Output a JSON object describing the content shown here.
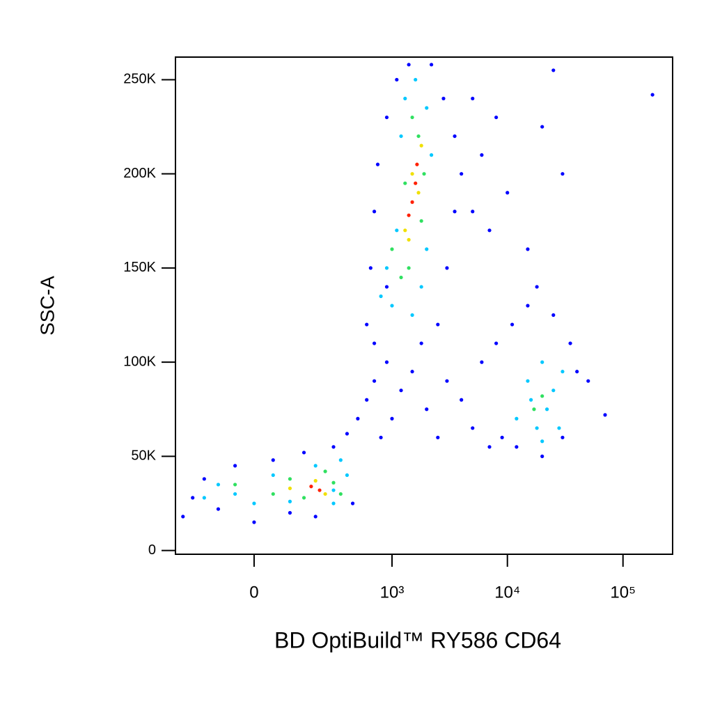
{
  "chart_data": {
    "type": "scatter",
    "xlabel": "BD OptiBuild™ RY586 CD64",
    "ylabel": "SSC-A",
    "xscale": "biexponential",
    "xlim": [
      -295,
      268700
    ],
    "ylim": [
      -2000,
      262000
    ],
    "xticks": [
      0,
      {
        "value": 1000,
        "label": "10³"
      },
      {
        "value": 10000,
        "label": "10⁴"
      },
      {
        "value": 100000,
        "label": "10⁵"
      }
    ],
    "yticks": [
      0,
      {
        "value": 50000,
        "label": "50K"
      },
      {
        "value": 100000,
        "label": "100K"
      },
      {
        "value": 150000,
        "label": "150K"
      },
      {
        "value": 200000,
        "label": "200K"
      },
      {
        "value": 250000,
        "label": "250K"
      }
    ],
    "series": [
      {
        "color": "#0000ff",
        "x": [
          -250,
          -200,
          -150,
          -100,
          -50,
          0,
          50,
          100,
          150,
          200,
          300,
          400,
          500,
          450,
          600,
          700,
          800,
          900,
          1000,
          1200,
          1500,
          2000,
          2500,
          3000,
          4000,
          5000,
          6000,
          7000,
          8000,
          9000,
          11000,
          12000,
          15000,
          18000,
          20000,
          25000,
          30000,
          35000,
          40000,
          50000,
          70000,
          600,
          650,
          700,
          750,
          900,
          1100,
          1400,
          2200,
          2800,
          3500,
          4000,
          5000,
          6000,
          7000,
          8000,
          10000,
          15000,
          20000,
          30000,
          3000,
          2500,
          700,
          900,
          1800,
          3500,
          5000,
          25000,
          180000
        ],
        "y": [
          18000,
          28000,
          38000,
          22000,
          45000,
          15000,
          48000,
          20000,
          52000,
          18000,
          55000,
          62000,
          70000,
          25000,
          80000,
          90000,
          60000,
          100000,
          70000,
          85000,
          95000,
          75000,
          60000,
          90000,
          80000,
          65000,
          100000,
          55000,
          110000,
          60000,
          120000,
          55000,
          130000,
          140000,
          50000,
          125000,
          60000,
          110000,
          95000,
          90000,
          72000,
          120000,
          150000,
          180000,
          205000,
          230000,
          250000,
          258000,
          258000,
          240000,
          220000,
          200000,
          180000,
          210000,
          170000,
          230000,
          190000,
          160000,
          225000,
          200000,
          150000,
          120000,
          110000,
          140000,
          110000,
          180000,
          240000,
          255000,
          242000
        ]
      },
      {
        "color": "#00c8ff",
        "x": [
          -150,
          -100,
          0,
          50,
          100,
          200,
          300,
          350,
          400,
          -50,
          300,
          900,
          1000,
          1100,
          1200,
          1300,
          1500,
          1600,
          2000,
          2200,
          2000,
          1800,
          800,
          12000,
          15000,
          18000,
          20000,
          22000,
          25000,
          28000,
          16000,
          30000,
          20000
        ],
        "y": [
          28000,
          35000,
          25000,
          40000,
          26000,
          45000,
          25000,
          48000,
          40000,
          30000,
          32000,
          150000,
          130000,
          170000,
          220000,
          240000,
          125000,
          250000,
          160000,
          210000,
          235000,
          140000,
          135000,
          70000,
          90000,
          65000,
          100000,
          75000,
          85000,
          65000,
          80000,
          95000,
          58000
        ]
      },
      {
        "color": "#30e060",
        "x": [
          -50,
          50,
          100,
          150,
          250,
          300,
          350,
          1000,
          1200,
          1300,
          1500,
          1700,
          1800,
          1400,
          1900,
          20000,
          17000
        ],
        "y": [
          35000,
          30000,
          38000,
          28000,
          42000,
          36000,
          30000,
          160000,
          145000,
          195000,
          230000,
          220000,
          175000,
          150000,
          200000,
          82000,
          75000
        ]
      },
      {
        "color": "#f0e000",
        "x": [
          100,
          200,
          250,
          1300,
          1500,
          1700,
          1400,
          1800
        ],
        "y": [
          33000,
          37000,
          30000,
          170000,
          200000,
          190000,
          165000,
          215000
        ]
      },
      {
        "color": "#ff2000",
        "x": [
          180,
          220,
          1500,
          1600,
          1400,
          1650
        ],
        "y": [
          34000,
          32000,
          185000,
          195000,
          178000,
          205000
        ]
      }
    ]
  }
}
